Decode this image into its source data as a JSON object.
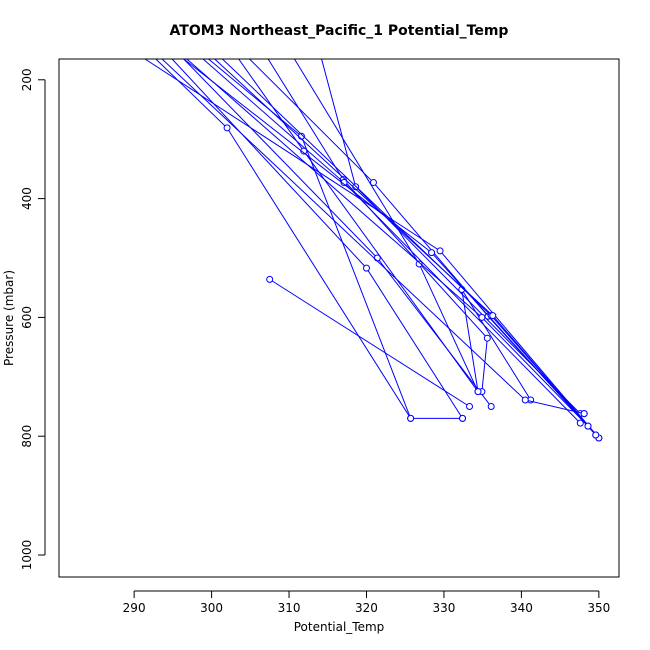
{
  "chart_data": {
    "type": "line",
    "title": "ATOM3 Northeast_Pacific_1 Potential_Temp",
    "xlabel": "Potential_Temp",
    "ylabel": "Pressure (mbar)",
    "xlim": [
      280.3,
      352.6
    ],
    "ylim": [
      1037,
      165
    ],
    "y_axis_inverted": true,
    "x_ticks": [
      290,
      300,
      310,
      320,
      330,
      340,
      350
    ],
    "y_ticks": [
      200,
      400,
      600,
      800,
      1000
    ],
    "grid": false,
    "legend": "none",
    "series_color": "#0000ff",
    "marker": "open-circle",
    "series": [
      {
        "points": [
          [
            292.8,
            165
          ],
          [
            302,
            281
          ],
          [
            325.7,
            770
          ]
        ]
      },
      {
        "points": [
          [
            307.5,
            536
          ],
          [
            333.3,
            750
          ]
        ]
      },
      {
        "points": [
          [
            294.9,
            165
          ],
          [
            320,
            517
          ],
          [
            332.4,
            770
          ]
        ]
      },
      {
        "points": [
          [
            296.4,
            165
          ],
          [
            321.4,
            500
          ],
          [
            336.1,
            750
          ]
        ]
      },
      {
        "points": [
          [
            299.6,
            165
          ],
          [
            311.6,
            295
          ],
          [
            325.7,
            770
          ],
          [
            332.4,
            770
          ]
        ]
      },
      {
        "points": [
          [
            303.5,
            165
          ],
          [
            311.9,
            320
          ],
          [
            334.4,
            725
          ]
        ]
      },
      {
        "points": [
          [
            307.3,
            165
          ],
          [
            317,
            368
          ],
          [
            335.6,
            635
          ],
          [
            334.9,
            725
          ]
        ]
      },
      {
        "points": [
          [
            310.7,
            165
          ],
          [
            326.8,
            510
          ],
          [
            334.4,
            725
          ],
          [
            332.3,
            553
          ],
          [
            341.2,
            739
          ]
        ]
      },
      {
        "points": [
          [
            314.2,
            165
          ],
          [
            318.6,
            380
          ],
          [
            347.6,
            762
          ],
          [
            348.1,
            762
          ]
        ]
      },
      {
        "points": [
          [
            304.9,
            165
          ],
          [
            320.9,
            373
          ],
          [
            335.7,
            598
          ],
          [
            348.6,
            783
          ]
        ]
      },
      {
        "points": [
          [
            298.9,
            165
          ],
          [
            317.1,
            373
          ],
          [
            347.6,
            778
          ]
        ]
      },
      {
        "points": [
          [
            296.4,
            165
          ],
          [
            328.4,
            491
          ],
          [
            349.6,
            798
          ]
        ]
      },
      {
        "points": [
          [
            291.4,
            165
          ],
          [
            329.5,
            488
          ],
          [
            350,
            803
          ]
        ]
      },
      {
        "points": [
          [
            301.4,
            165
          ],
          [
            336.1,
            597
          ],
          [
            350,
            803
          ]
        ]
      },
      {
        "points": [
          [
            300.4,
            165
          ],
          [
            336.3,
            597
          ],
          [
            349.6,
            798
          ]
        ]
      },
      {
        "points": [
          [
            296.8,
            165
          ],
          [
            334.9,
            600
          ],
          [
            348.6,
            783
          ]
        ]
      },
      {
        "points": [
          [
            293.6,
            165
          ],
          [
            340.5,
            739
          ],
          [
            348.1,
            762
          ]
        ]
      }
    ]
  }
}
